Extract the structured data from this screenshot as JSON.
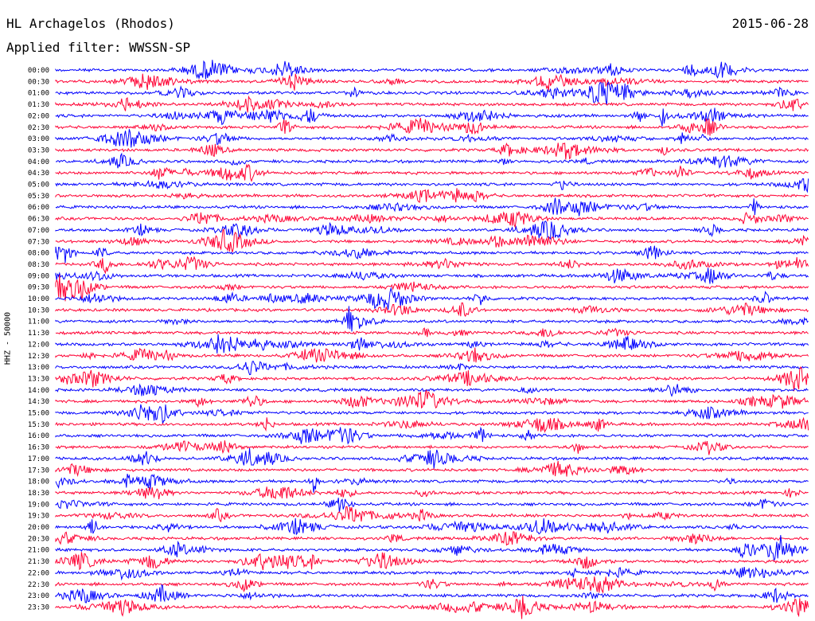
{
  "header": {
    "station": "HL Archagelos (Rhodos)",
    "date": "2015-06-28",
    "filter_label": "Applied filter: WWSSN-SP"
  },
  "chart_data": {
    "type": "line",
    "title": "HL Archagelos (Rhodos)",
    "ylabel": "HHZ - 50000",
    "row_labels": [
      "00:00",
      "00:30",
      "01:00",
      "01:30",
      "02:00",
      "02:30",
      "03:00",
      "03:30",
      "04:00",
      "04:30",
      "05:00",
      "05:30",
      "06:00",
      "06:30",
      "07:00",
      "07:30",
      "08:00",
      "08:30",
      "09:00",
      "09:30",
      "10:00",
      "10:30",
      "11:00",
      "11:30",
      "12:00",
      "12:30",
      "13:00",
      "13:30",
      "14:00",
      "14:30",
      "15:00",
      "15:30",
      "16:00",
      "16:30",
      "17:00",
      "17:30",
      "18:00",
      "18:30",
      "19:00",
      "19:30",
      "20:00",
      "20:30",
      "21:00",
      "21:30",
      "22:00",
      "22:30",
      "23:00",
      "23:30"
    ],
    "colors": [
      "#0000ff",
      "#ff0033"
    ],
    "grid": false
  }
}
